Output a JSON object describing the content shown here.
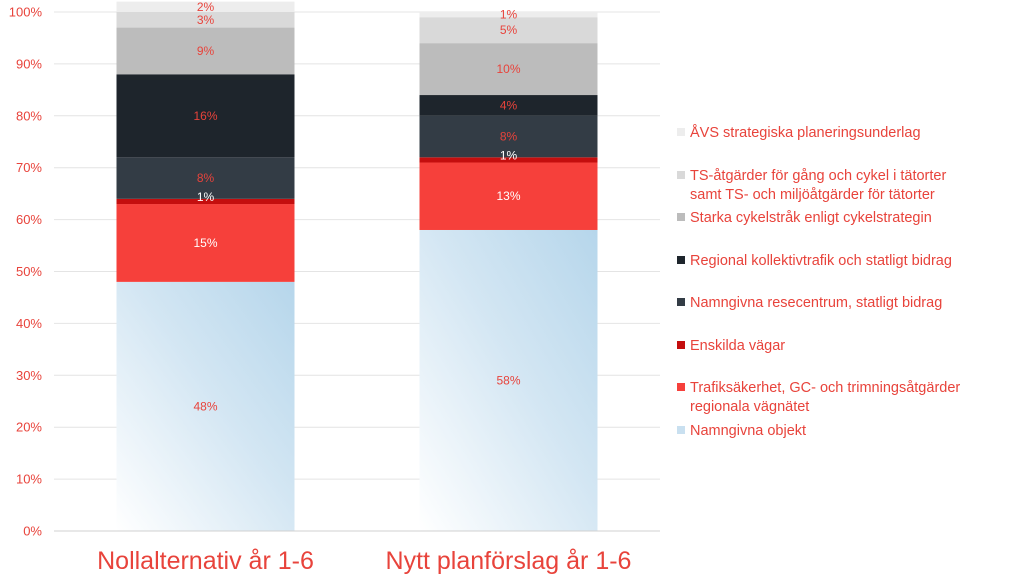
{
  "chart_data": {
    "type": "bar",
    "stacked": true,
    "categories": [
      "Nollalternativ år 1-6",
      "Nytt planförslag år 1-6"
    ],
    "ylim": [
      0,
      100
    ],
    "yticks": [
      "0%",
      "10%",
      "20%",
      "30%",
      "40%",
      "50%",
      "60%",
      "70%",
      "80%",
      "90%",
      "100%"
    ],
    "legend_position": "right",
    "series": [
      {
        "name": "Namngivna objekt",
        "values": [
          48,
          58
        ],
        "labels": [
          "48%",
          "58%"
        ],
        "color": "#b8d8ec"
      },
      {
        "name": "Trafiksäkerhet, GC- och trimningsåtgärder regionala vägnätet",
        "values": [
          15,
          13
        ],
        "labels": [
          "15%",
          "13%"
        ],
        "color": "#f6403b"
      },
      {
        "name": "Enskilda vägar",
        "values": [
          1,
          1
        ],
        "labels": [
          "1%",
          "1%"
        ],
        "color": "#c40e0e"
      },
      {
        "name": "Namngivna resecentrum, statligt bidrag",
        "values": [
          8,
          8
        ],
        "labels": [
          "8%",
          "8%"
        ],
        "color": "#333c45"
      },
      {
        "name": "Regional kollektivtrafik och statligt bidrag",
        "values": [
          16,
          4
        ],
        "labels": [
          "16%",
          "4%"
        ],
        "color": "#1e252c"
      },
      {
        "name": "Starka cykelstråk enligt cykelstrategin",
        "values": [
          9,
          10
        ],
        "labels": [
          "9%",
          "10%"
        ],
        "color": "#bcbcbc"
      },
      {
        "name": "TS-åtgärder för gång och cykel i tätorter samt TS- och miljöåtgärder för tätorter",
        "values": [
          3,
          5
        ],
        "labels": [
          "3%",
          "5%"
        ],
        "color": "#d9d9d9"
      },
      {
        "name": "ÅVS strategiska planeringsunderlag",
        "values": [
          2,
          1
        ],
        "labels": [
          "2%",
          "1%"
        ],
        "color": "#ededed"
      }
    ]
  }
}
